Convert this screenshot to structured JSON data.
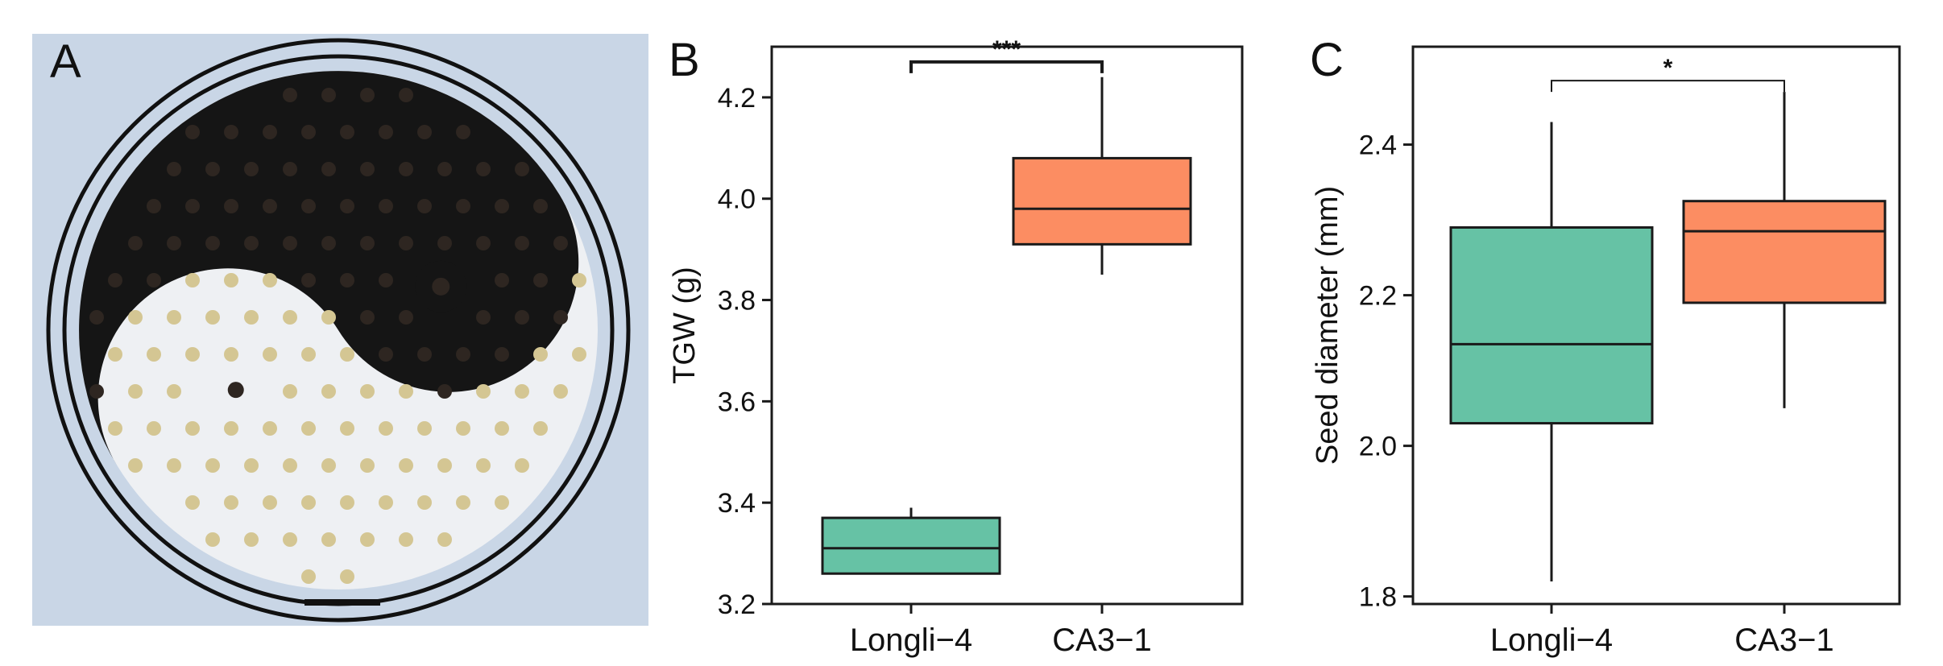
{
  "panels": {
    "a": {
      "label": "A"
    },
    "b": {
      "label": "B"
    },
    "c": {
      "label": "C"
    }
  },
  "photo": {
    "subject": "seeds-yin-yang",
    "background_color": "#c9d6e6",
    "dark_color": "#151515",
    "light_color": "#eef0f3",
    "seed_light_color": "#d4c693",
    "seed_dark_color": "#2e2621"
  },
  "colors": {
    "green": "#66c2a5",
    "orange": "#fc8d62",
    "stroke": "#1a1a1a"
  },
  "chart_data": [
    {
      "type": "box",
      "panel": "B",
      "categories": [
        "Longli−4",
        "CA3−1"
      ],
      "ylabel": "TGW (g)",
      "ylim": [
        3.2,
        4.3
      ],
      "yticks": [
        3.2,
        3.4,
        3.6,
        3.8,
        4.0,
        4.2
      ],
      "ytick_labels": [
        "3.2",
        "3.4",
        "3.6",
        "3.8",
        "4.0",
        "4.2"
      ],
      "boxes": [
        {
          "name": "Longli−4",
          "min": 3.26,
          "q1": 3.26,
          "median": 3.31,
          "q3": 3.37,
          "max": 3.39,
          "color": "#66c2a5"
        },
        {
          "name": "CA3−1",
          "min": 3.85,
          "q1": 3.91,
          "median": 3.98,
          "q3": 4.08,
          "max": 4.24,
          "color": "#fc8d62"
        }
      ],
      "significance": {
        "label": "***",
        "y": 4.27
      }
    },
    {
      "type": "box",
      "panel": "C",
      "categories": [
        "Longli−4",
        "CA3−1"
      ],
      "ylabel": "Seed diameter (mm)",
      "ylim": [
        1.79,
        2.53
      ],
      "yticks": [
        1.8,
        2.0,
        2.2,
        2.4
      ],
      "ytick_labels": [
        "1.8",
        "2.0",
        "2.2",
        "2.4"
      ],
      "boxes": [
        {
          "name": "Longli−4",
          "min": 1.82,
          "q1": 2.03,
          "median": 2.135,
          "q3": 2.29,
          "max": 2.43,
          "color": "#66c2a5"
        },
        {
          "name": "CA3−1",
          "min": 2.05,
          "q1": 2.19,
          "median": 2.285,
          "q3": 2.325,
          "max": 2.47,
          "color": "#fc8d62"
        }
      ],
      "significance": {
        "label": "*",
        "y": 2.485
      }
    }
  ]
}
